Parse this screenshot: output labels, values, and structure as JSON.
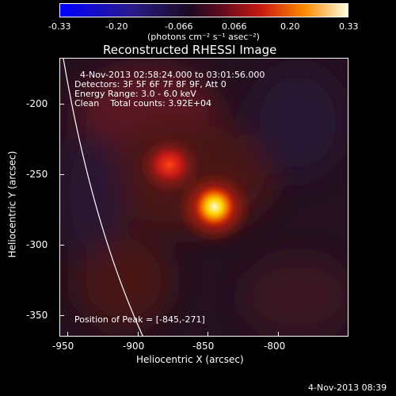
{
  "colorbar": {
    "ticks": [
      "-0.33",
      "-0.20",
      "-0.066",
      "0.066",
      "0.20",
      "0.33"
    ],
    "units_label": "(photons cm⁻² s⁻¹ asec⁻²)"
  },
  "title": "Reconstructed RHESSI Image",
  "info": {
    "time_range": "4-Nov-2013 02:58:24.000 to 03:01:56.000",
    "detectors": "Detectors: 3F 5F 6F 7F 8F 9F, Att 0",
    "energy": "Energy Range: 3.0 - 6.0 keV",
    "clean": "Clean    Total counts: 3.92E+04",
    "peak": "Position of Peak = [-845,-271]"
  },
  "axes": {
    "xlabel": "Heliocentric X (arcsec)",
    "ylabel": "Heliocentric Y (arcsec)",
    "xticks": [
      "-950",
      "-900",
      "-850",
      "-800"
    ],
    "yticks": [
      "-200",
      "-250",
      "-300",
      "-350"
    ]
  },
  "footer": {
    "timestamp": "4-Nov-2013 08:39"
  },
  "chart_data": {
    "type": "heatmap",
    "title": "Reconstructed RHESSI Image",
    "xlabel": "Heliocentric X (arcsec)",
    "ylabel": "Heliocentric Y (arcsec)",
    "xlim": [
      -955,
      -820
    ],
    "ylim": [
      -362,
      -172
    ],
    "colorbar_range": [
      -0.33,
      0.33
    ],
    "sources": [
      {
        "x": -845,
        "y": -271
      },
      {
        "x": -877,
        "y": -244
      }
    ]
  }
}
